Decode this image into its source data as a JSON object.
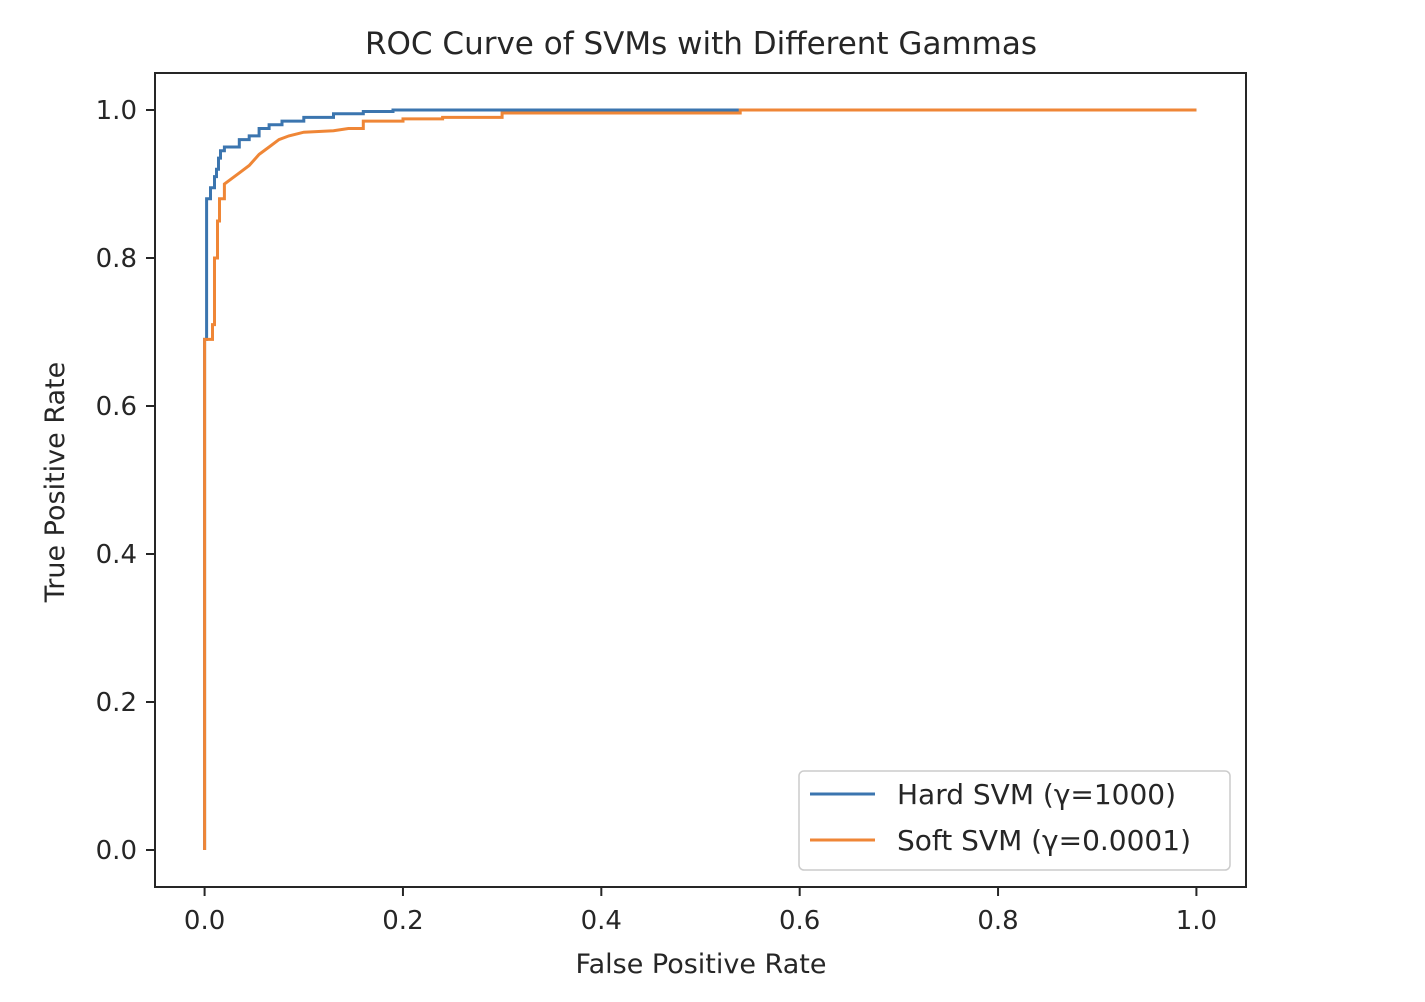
{
  "chart_data": {
    "type": "line",
    "title": "ROC Curve of SVMs with Different Gammas",
    "xlabel": "False Positive Rate",
    "ylabel": "True Positive Rate",
    "xlim": [
      -0.05,
      1.05
    ],
    "ylim": [
      -0.05,
      1.05
    ],
    "xticks": [
      0.0,
      0.2,
      0.4,
      0.6,
      0.8,
      1.0
    ],
    "xtick_labels": [
      "0.0",
      "0.2",
      "0.4",
      "0.6",
      "0.8",
      "1.0"
    ],
    "yticks": [
      0.0,
      0.2,
      0.4,
      0.6,
      0.8,
      1.0
    ],
    "ytick_labels": [
      "0.0",
      "0.2",
      "0.4",
      "0.6",
      "0.8",
      "1.0"
    ],
    "grid": false,
    "legend_position": "lower-right",
    "series": [
      {
        "name": "Hard SVM (γ=1000)",
        "color": "#3b75af",
        "x": [
          0.0,
          0.0,
          0.002,
          0.002,
          0.006,
          0.006,
          0.01,
          0.01,
          0.012,
          0.012,
          0.014,
          0.014,
          0.016,
          0.016,
          0.02,
          0.02,
          0.035,
          0.035,
          0.045,
          0.045,
          0.055,
          0.055,
          0.065,
          0.065,
          0.078,
          0.078,
          0.1,
          0.1,
          0.13,
          0.13,
          0.16,
          0.16,
          0.19,
          0.19,
          0.3,
          0.3,
          0.54,
          0.54,
          1.0
        ],
        "y": [
          0.0,
          0.69,
          0.69,
          0.88,
          0.88,
          0.895,
          0.895,
          0.91,
          0.91,
          0.92,
          0.92,
          0.935,
          0.935,
          0.945,
          0.945,
          0.95,
          0.95,
          0.96,
          0.96,
          0.965,
          0.965,
          0.975,
          0.975,
          0.98,
          0.98,
          0.985,
          0.985,
          0.99,
          0.99,
          0.995,
          0.995,
          0.998,
          0.998,
          1.0,
          1.0,
          1.0,
          1.0,
          1.0,
          1.0
        ]
      },
      {
        "name": "Soft SVM (γ=0.0001)",
        "color": "#ef8636",
        "x": [
          0.0,
          0.0,
          0.008,
          0.008,
          0.01,
          0.01,
          0.013,
          0.013,
          0.015,
          0.015,
          0.02,
          0.02,
          0.025,
          0.035,
          0.045,
          0.055,
          0.065,
          0.075,
          0.085,
          0.1,
          0.13,
          0.145,
          0.16,
          0.16,
          0.2,
          0.2,
          0.24,
          0.24,
          0.3,
          0.3,
          0.54,
          0.54,
          1.0
        ],
        "y": [
          0.0,
          0.69,
          0.69,
          0.71,
          0.71,
          0.8,
          0.8,
          0.85,
          0.85,
          0.88,
          0.88,
          0.9,
          0.905,
          0.915,
          0.925,
          0.94,
          0.95,
          0.96,
          0.965,
          0.97,
          0.972,
          0.975,
          0.975,
          0.985,
          0.985,
          0.988,
          0.988,
          0.99,
          0.99,
          0.996,
          0.996,
          1.0,
          1.0
        ]
      }
    ]
  }
}
